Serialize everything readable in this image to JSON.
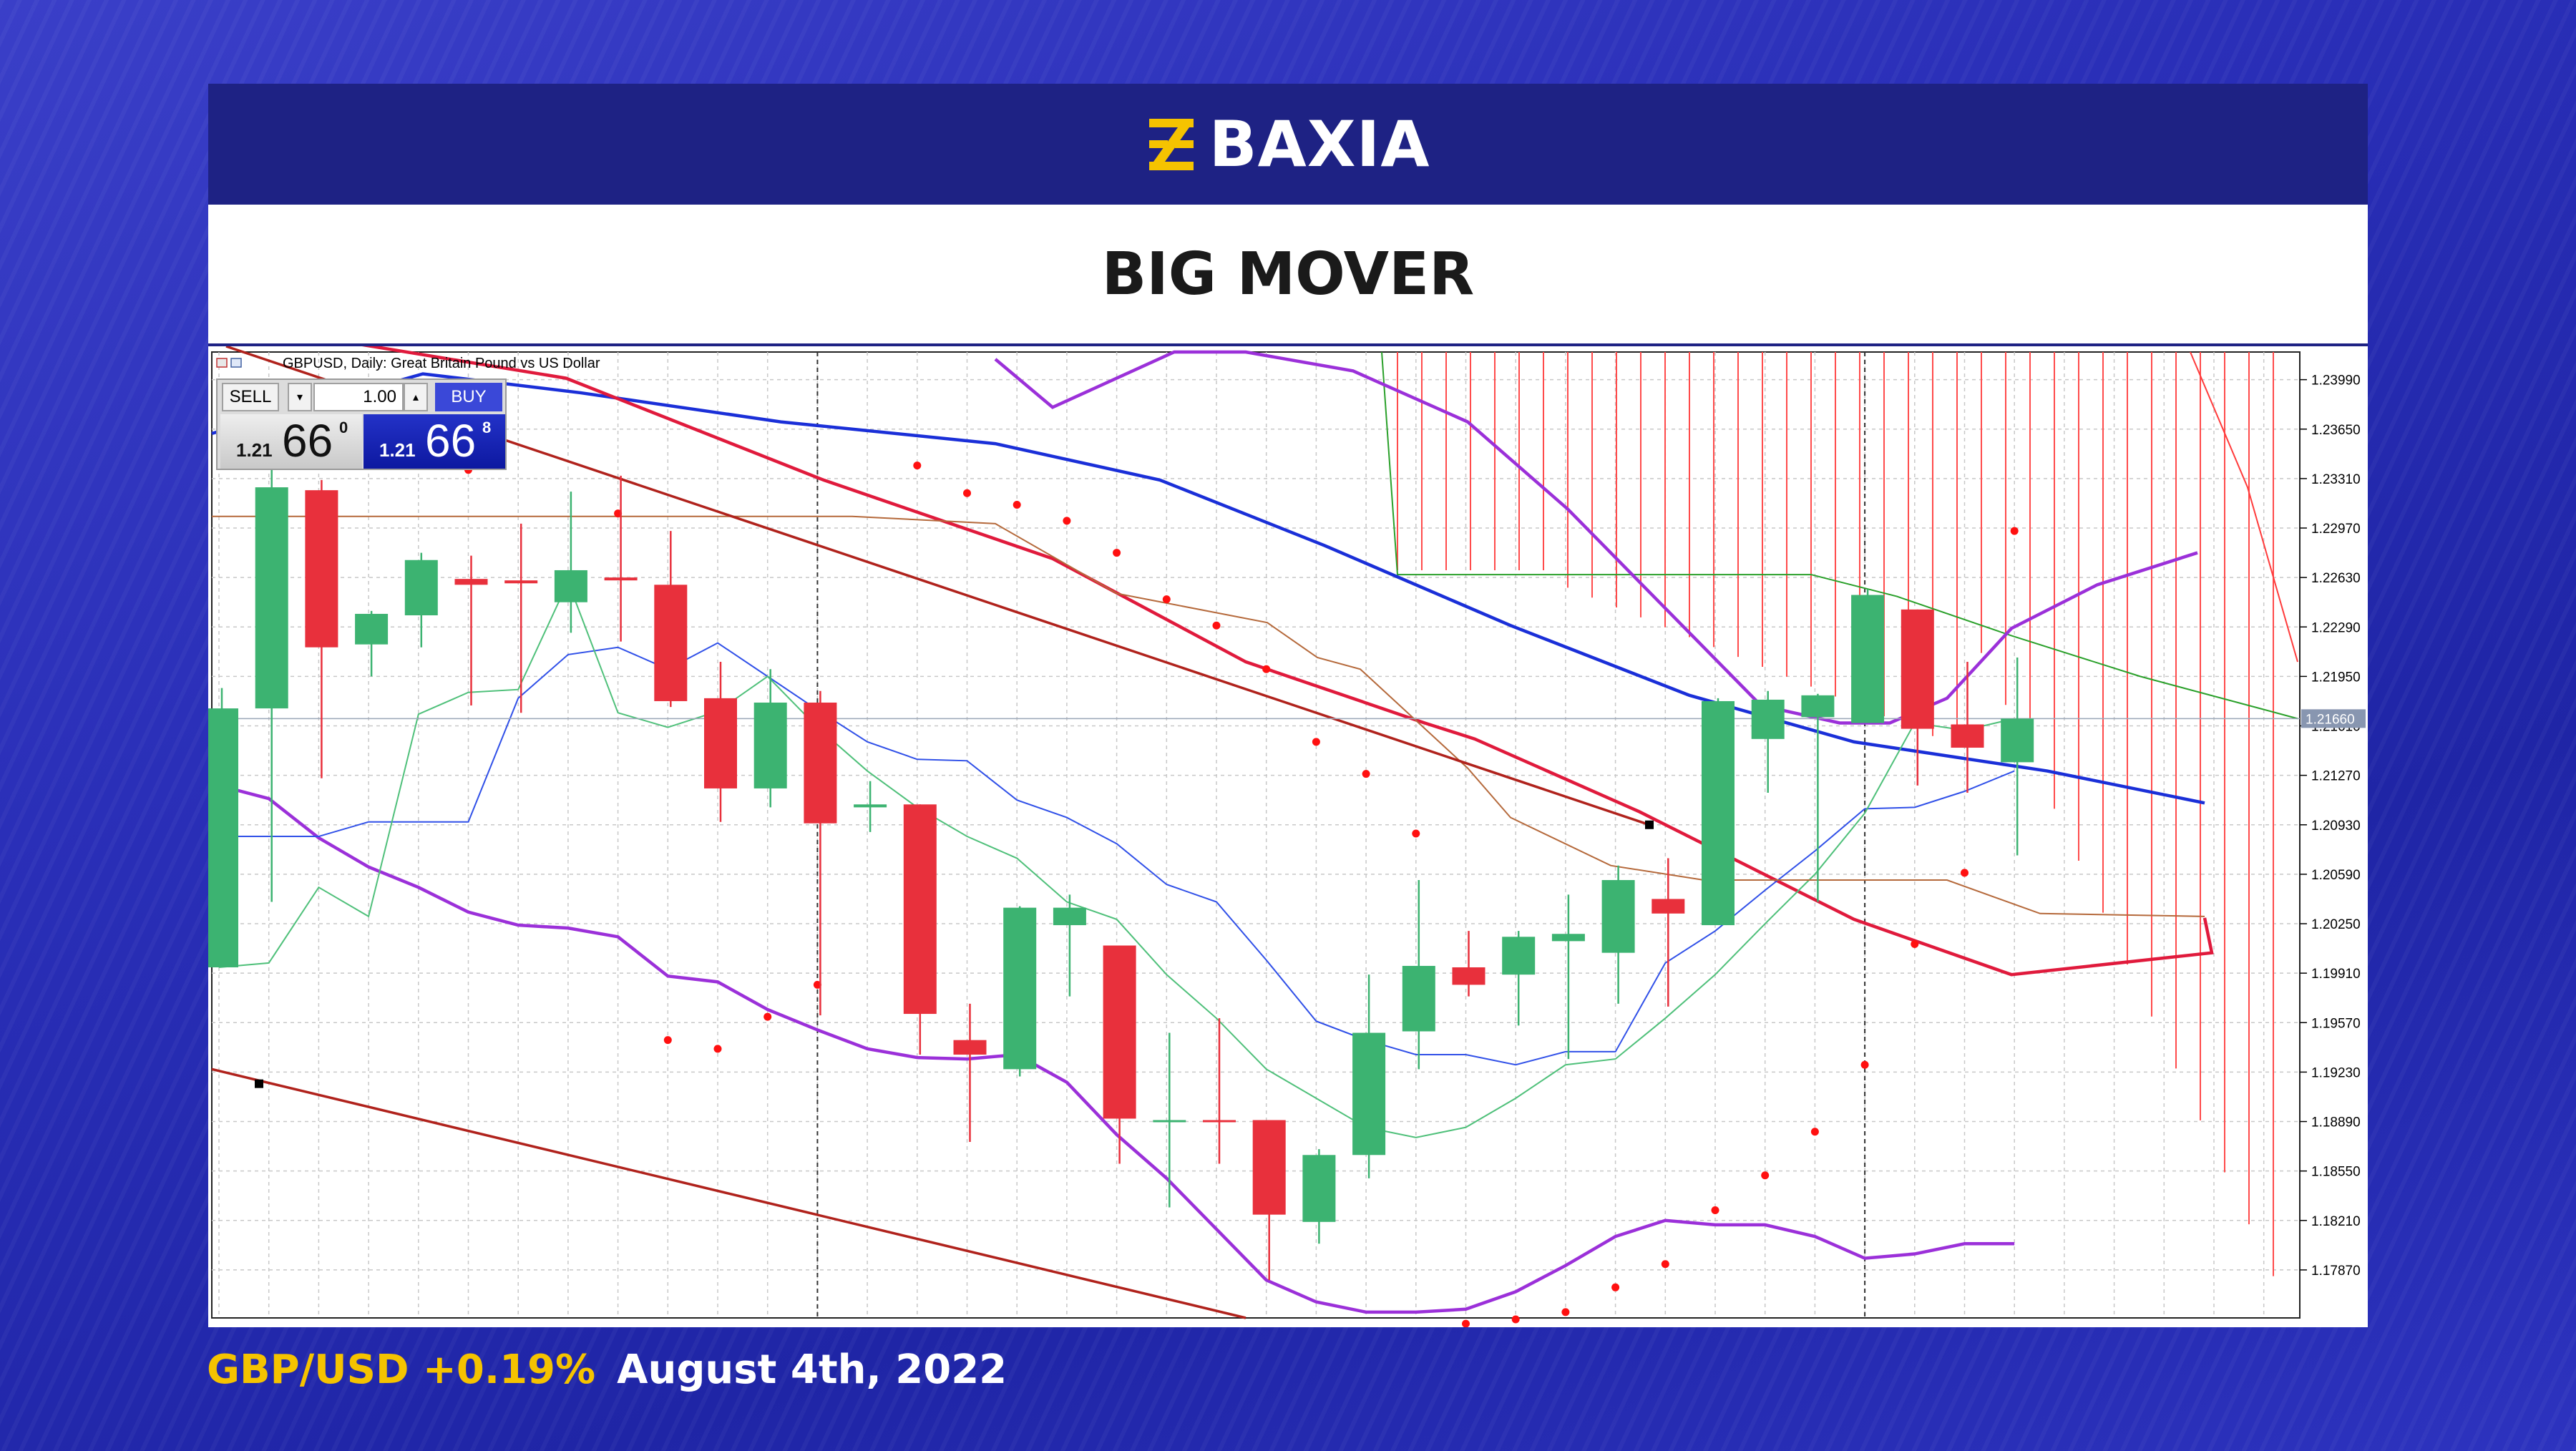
{
  "brand": {
    "name": "BAXIA",
    "logo_icon": "baxia-logo-icon",
    "accent": "#f5c300",
    "bar_color": "#1e2284"
  },
  "title": "BIG MOVER",
  "footer": {
    "pair_change": "GBP/USD +0.19%",
    "date": "August 4th, 2022"
  },
  "trade_panel": {
    "sell_label": "SELL",
    "buy_label": "BUY",
    "lot_value": "1.00",
    "bid": {
      "prefix": "1.21",
      "big": "66",
      "sup": "0"
    },
    "ask": {
      "prefix": "1.21",
      "big": "66",
      "sup": "8"
    }
  },
  "chart_data": {
    "type": "candlestick",
    "title": "GBPUSD, Daily:  Great Britain Pound vs US Dollar",
    "y_ticks": [
      "1.23990",
      "1.23650",
      "1.23310",
      "1.22970",
      "1.22630",
      "1.22290",
      "1.21950",
      "1.21610",
      "1.21270",
      "1.20930",
      "1.20590",
      "1.20250",
      "1.19910",
      "1.19570",
      "1.19230",
      "1.18890",
      "1.18550",
      "1.18210",
      "1.17870"
    ],
    "current_price_label": "1.21660",
    "current_price": 1.2166,
    "ylim": [
      1.1754,
      1.2418
    ],
    "grid": true,
    "colors": {
      "up": "#3cb371",
      "down": "#e8303c"
    },
    "candles": [
      {
        "o": 1.1995,
        "h": 1.2187,
        "l": 1.1995,
        "c": 1.2173
      },
      {
        "o": 1.2173,
        "h": 1.2365,
        "l": 1.204,
        "c": 1.2325
      },
      {
        "o": 1.2323,
        "h": 1.233,
        "l": 1.2125,
        "c": 1.2215
      },
      {
        "o": 1.2217,
        "h": 1.224,
        "l": 1.2195,
        "c": 1.2238
      },
      {
        "o": 1.2237,
        "h": 1.228,
        "l": 1.2215,
        "c": 1.2275
      },
      {
        "o": 1.2262,
        "h": 1.2278,
        "l": 1.2175,
        "c": 1.2258
      },
      {
        "o": 1.2261,
        "h": 1.23,
        "l": 1.217,
        "c": 1.2259
      },
      {
        "o": 1.2246,
        "h": 1.2322,
        "l": 1.2225,
        "c": 1.2268
      },
      {
        "o": 1.2263,
        "h": 1.2333,
        "l": 1.2219,
        "c": 1.2261
      },
      {
        "o": 1.2258,
        "h": 1.2295,
        "l": 1.2174,
        "c": 1.2178
      },
      {
        "o": 1.218,
        "h": 1.2205,
        "l": 1.2095,
        "c": 1.2118
      },
      {
        "o": 1.2118,
        "h": 1.22,
        "l": 1.2105,
        "c": 1.2177
      },
      {
        "o": 1.2177,
        "h": 1.2185,
        "l": 1.1962,
        "c": 1.2094
      },
      {
        "o": 1.2105,
        "h": 1.2123,
        "l": 1.2088,
        "c": 1.2107
      },
      {
        "o": 1.2107,
        "h": 1.2107,
        "l": 1.1935,
        "c": 1.1963
      },
      {
        "o": 1.1945,
        "h": 1.197,
        "l": 1.1875,
        "c": 1.1935
      },
      {
        "o": 1.1925,
        "h": 1.2037,
        "l": 1.192,
        "c": 1.2036
      },
      {
        "o": 1.2024,
        "h": 1.2045,
        "l": 1.1975,
        "c": 1.2036
      },
      {
        "o": 1.201,
        "h": 1.201,
        "l": 1.186,
        "c": 1.1891
      },
      {
        "o": 1.189,
        "h": 1.195,
        "l": 1.183,
        "c": 1.189
      },
      {
        "o": 1.189,
        "h": 1.196,
        "l": 1.186,
        "c": 1.1889
      },
      {
        "o": 1.189,
        "h": 1.189,
        "l": 1.178,
        "c": 1.1825
      },
      {
        "o": 1.182,
        "h": 1.187,
        "l": 1.1805,
        "c": 1.1866
      },
      {
        "o": 1.1866,
        "h": 1.199,
        "l": 1.185,
        "c": 1.195
      },
      {
        "o": 1.1951,
        "h": 1.2055,
        "l": 1.1925,
        "c": 1.1996
      },
      {
        "o": 1.1995,
        "h": 1.202,
        "l": 1.1975,
        "c": 1.1983
      },
      {
        "o": 1.199,
        "h": 1.202,
        "l": 1.1955,
        "c": 1.2016
      },
      {
        "o": 1.2013,
        "h": 1.2045,
        "l": 1.1932,
        "c": 1.2018
      },
      {
        "o": 1.2005,
        "h": 1.2065,
        "l": 1.197,
        "c": 1.2055
      },
      {
        "o": 1.2042,
        "h": 1.207,
        "l": 1.1968,
        "c": 1.2032
      },
      {
        "o": 1.2024,
        "h": 1.218,
        "l": 1.2024,
        "c": 1.2178
      },
      {
        "o": 1.2152,
        "h": 1.2185,
        "l": 1.2115,
        "c": 1.2179
      },
      {
        "o": 1.2167,
        "h": 1.2183,
        "l": 1.204,
        "c": 1.2182
      },
      {
        "o": 1.2163,
        "h": 1.2255,
        "l": 1.2163,
        "c": 1.2251
      },
      {
        "o": 1.2241,
        "h": 1.2241,
        "l": 1.212,
        "c": 1.2159
      },
      {
        "o": 1.2162,
        "h": 1.2205,
        "l": 1.2115,
        "c": 1.2146
      },
      {
        "o": 1.2136,
        "h": 1.2208,
        "l": 1.2072,
        "c": 1.2166
      }
    ]
  }
}
